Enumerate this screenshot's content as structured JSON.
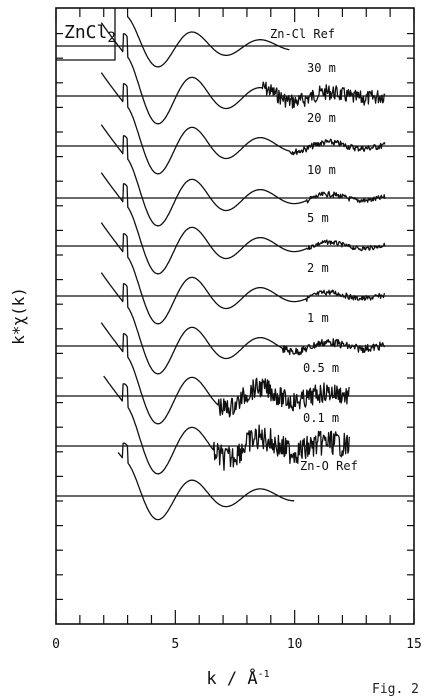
{
  "chart_data": {
    "type": "line",
    "title": "ZnCl2",
    "title_main": "ZnCl",
    "title_sub": "2",
    "xlabel": "k / Å",
    "xlabel_sup": "-1",
    "ylabel": "k*χ(k)",
    "xlim": [
      0,
      15
    ],
    "x_ticks": [
      0,
      5,
      10,
      15
    ],
    "x_tick_labels": [
      "0",
      "5",
      "10",
      "15"
    ],
    "grid": false,
    "legend": "none",
    "series": [
      {
        "name": "Zn-Cl Ref",
        "k_start": 3.0,
        "k_end": 9.8,
        "noise_from": 99,
        "noise": 0
      },
      {
        "name": "30 m",
        "k_start": 1.9,
        "k_end": 13.8,
        "noise_from": 8.6,
        "noise": 0.85
      },
      {
        "name": "20 m",
        "k_start": 1.9,
        "k_end": 13.8,
        "noise_from": 9.8,
        "noise": 0.35
      },
      {
        "name": "10 m",
        "k_start": 1.9,
        "k_end": 13.8,
        "noise_from": 10.5,
        "noise": 0.3
      },
      {
        "name": "5 m",
        "k_start": 1.9,
        "k_end": 13.8,
        "noise_from": 10.5,
        "noise": 0.25
      },
      {
        "name": "2 m",
        "k_start": 1.9,
        "k_end": 13.8,
        "noise_from": 10.5,
        "noise": 0.3
      },
      {
        "name": "1 m",
        "k_start": 1.9,
        "k_end": 13.8,
        "noise_from": 9.5,
        "noise": 0.45
      },
      {
        "name": "0.5 m",
        "k_start": 1.9,
        "k_end": 12.3,
        "noise_from": 6.8,
        "noise": 1.1
      },
      {
        "name": "0.1 m",
        "k_start": 2.0,
        "k_end": 12.3,
        "noise_from": 6.6,
        "noise": 1.4
      },
      {
        "name": "Zn-O Ref",
        "k_start": 2.6,
        "k_end": 10.0,
        "noise_from": 99,
        "noise": 0
      }
    ]
  },
  "caption": "Fig. 2"
}
